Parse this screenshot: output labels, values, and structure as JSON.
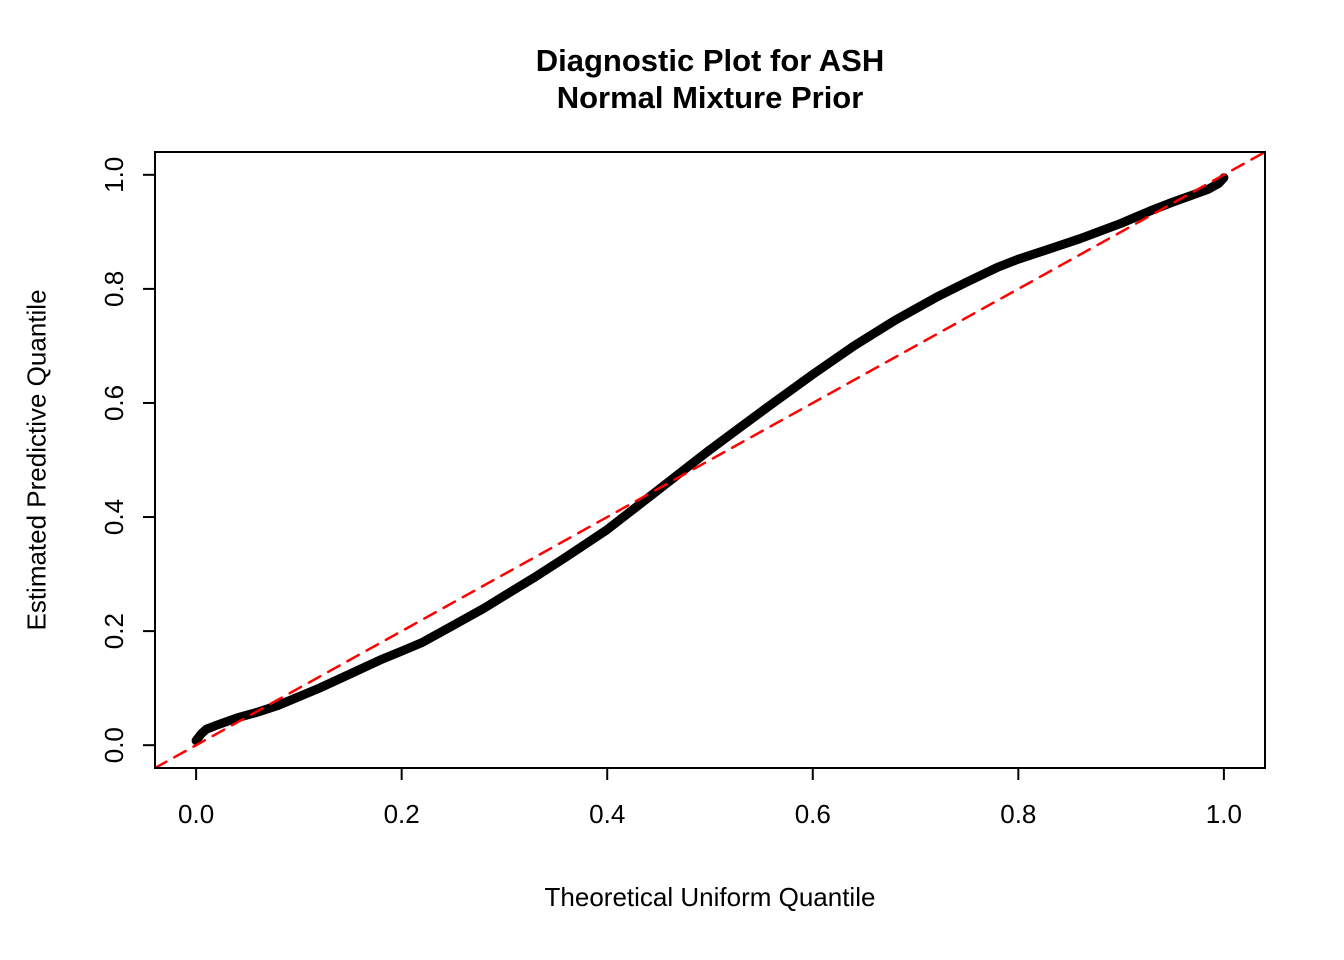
{
  "chart_data": {
    "type": "line",
    "title_line1": "Diagnostic Plot for ASH",
    "title_line2": "Normal Mixture Prior",
    "xlabel": "Theoretical Uniform Quantile",
    "ylabel": "Estimated Predictive Quantile",
    "xlim": [
      -0.04,
      1.04
    ],
    "ylim": [
      -0.04,
      1.04
    ],
    "grid": false,
    "legend": "none",
    "x_ticks": [
      0.0,
      0.2,
      0.4,
      0.6,
      0.8,
      1.0
    ],
    "y_ticks": [
      0.0,
      0.2,
      0.4,
      0.6,
      0.8,
      1.0
    ],
    "x_tick_labels": [
      "0.0",
      "0.2",
      "0.4",
      "0.6",
      "0.8",
      "1.0"
    ],
    "y_tick_labels": [
      "0.0",
      "0.2",
      "0.4",
      "0.6",
      "0.8",
      "1.0"
    ],
    "colors": {
      "curve": "#000000",
      "reference_line": "#FF0000",
      "axis": "#000000",
      "background": "#FFFFFF"
    },
    "series": [
      {
        "name": "estimated-predictive-quantiles",
        "style": "solid",
        "color": "#000000",
        "width": 9,
        "x": [
          0.0,
          0.005,
          0.01,
          0.02,
          0.04,
          0.06,
          0.08,
          0.1,
          0.12,
          0.15,
          0.18,
          0.2,
          0.22,
          0.25,
          0.28,
          0.3,
          0.33,
          0.36,
          0.4,
          0.43,
          0.45,
          0.48,
          0.5,
          0.53,
          0.56,
          0.6,
          0.64,
          0.68,
          0.72,
          0.75,
          0.78,
          0.8,
          0.83,
          0.86,
          0.9,
          0.93,
          0.95,
          0.97,
          0.985,
          0.995,
          1.0
        ],
        "y": [
          0.008,
          0.02,
          0.028,
          0.035,
          0.048,
          0.058,
          0.07,
          0.085,
          0.1,
          0.125,
          0.15,
          0.165,
          0.18,
          0.21,
          0.24,
          0.262,
          0.295,
          0.33,
          0.378,
          0.42,
          0.448,
          0.49,
          0.518,
          0.558,
          0.598,
          0.65,
          0.7,
          0.745,
          0.785,
          0.812,
          0.838,
          0.852,
          0.87,
          0.888,
          0.915,
          0.938,
          0.952,
          0.965,
          0.975,
          0.985,
          0.995
        ]
      },
      {
        "name": "reference-diagonal-y-equals-x",
        "style": "dashed",
        "color": "#FF0000",
        "width": 2.5,
        "x": [
          -0.04,
          1.04
        ],
        "y": [
          -0.04,
          1.04
        ]
      }
    ]
  }
}
